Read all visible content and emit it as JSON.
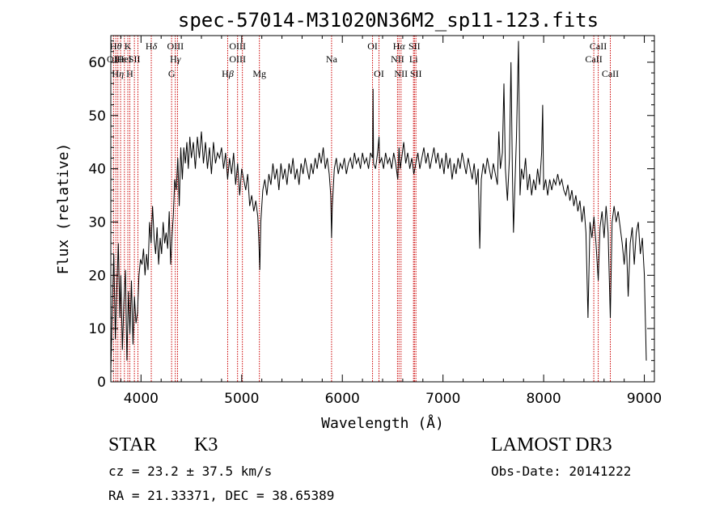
{
  "chart_data": {
    "type": "line",
    "title": "spec-57014-M31020N36M2_sp11-123.fits",
    "xlabel": "Wavelength (Å)",
    "ylabel": "Flux (relative)",
    "xlim": [
      3700,
      9100
    ],
    "ylim": [
      0,
      65
    ],
    "xticks": [
      4000,
      5000,
      6000,
      7000,
      8000,
      9000
    ],
    "yticks": [
      0,
      10,
      20,
      30,
      40,
      50,
      60
    ],
    "line_color": "#000000",
    "marker_color": "#cc0000",
    "spectrum": [
      [
        3700,
        2
      ],
      [
        3715,
        14
      ],
      [
        3730,
        24
      ],
      [
        3745,
        8
      ],
      [
        3760,
        18
      ],
      [
        3775,
        26
      ],
      [
        3790,
        12
      ],
      [
        3800,
        20
      ],
      [
        3815,
        6
      ],
      [
        3830,
        15
      ],
      [
        3845,
        21
      ],
      [
        3860,
        4
      ],
      [
        3875,
        17
      ],
      [
        3890,
        9
      ],
      [
        3905,
        19
      ],
      [
        3920,
        7
      ],
      [
        3935,
        16
      ],
      [
        3950,
        11
      ],
      [
        3965,
        13
      ],
      [
        3980,
        20
      ],
      [
        3995,
        23
      ],
      [
        4010,
        22
      ],
      [
        4025,
        25
      ],
      [
        4040,
        20
      ],
      [
        4055,
        24
      ],
      [
        4070,
        21
      ],
      [
        4085,
        30
      ],
      [
        4100,
        26
      ],
      [
        4115,
        33
      ],
      [
        4130,
        27
      ],
      [
        4145,
        24
      ],
      [
        4160,
        29
      ],
      [
        4175,
        22
      ],
      [
        4190,
        27
      ],
      [
        4205,
        24
      ],
      [
        4220,
        30
      ],
      [
        4235,
        26
      ],
      [
        4250,
        28
      ],
      [
        4265,
        25
      ],
      [
        4280,
        32
      ],
      [
        4295,
        22
      ],
      [
        4310,
        28
      ],
      [
        4320,
        31
      ],
      [
        4335,
        38
      ],
      [
        4350,
        36
      ],
      [
        4365,
        42
      ],
      [
        4380,
        33
      ],
      [
        4395,
        44
      ],
      [
        4410,
        38
      ],
      [
        4425,
        44
      ],
      [
        4440,
        41
      ],
      [
        4455,
        45
      ],
      [
        4470,
        40
      ],
      [
        4485,
        46
      ],
      [
        4500,
        42
      ],
      [
        4520,
        45
      ],
      [
        4540,
        40
      ],
      [
        4560,
        46
      ],
      [
        4580,
        42
      ],
      [
        4600,
        47
      ],
      [
        4620,
        41
      ],
      [
        4640,
        45
      ],
      [
        4660,
        40
      ],
      [
        4680,
        44
      ],
      [
        4700,
        39
      ],
      [
        4720,
        45
      ],
      [
        4740,
        41
      ],
      [
        4760,
        43
      ],
      [
        4780,
        42
      ],
      [
        4800,
        44
      ],
      [
        4820,
        40
      ],
      [
        4840,
        43
      ],
      [
        4860,
        38
      ],
      [
        4880,
        42
      ],
      [
        4900,
        39
      ],
      [
        4920,
        43
      ],
      [
        4940,
        37
      ],
      [
        4960,
        41
      ],
      [
        4980,
        35
      ],
      [
        5000,
        40
      ],
      [
        5020,
        38
      ],
      [
        5040,
        36
      ],
      [
        5060,
        39
      ],
      [
        5080,
        33
      ],
      [
        5100,
        35
      ],
      [
        5120,
        32
      ],
      [
        5140,
        34
      ],
      [
        5160,
        31
      ],
      [
        5170,
        27
      ],
      [
        5180,
        21
      ],
      [
        5190,
        30
      ],
      [
        5210,
        36
      ],
      [
        5230,
        38
      ],
      [
        5250,
        35
      ],
      [
        5270,
        39
      ],
      [
        5290,
        37
      ],
      [
        5310,
        41
      ],
      [
        5330,
        38
      ],
      [
        5350,
        40
      ],
      [
        5370,
        36
      ],
      [
        5390,
        41
      ],
      [
        5410,
        38
      ],
      [
        5430,
        40
      ],
      [
        5450,
        37
      ],
      [
        5470,
        41
      ],
      [
        5490,
        39
      ],
      [
        5510,
        42
      ],
      [
        5530,
        38
      ],
      [
        5550,
        40
      ],
      [
        5570,
        37
      ],
      [
        5590,
        41
      ],
      [
        5610,
        39
      ],
      [
        5630,
        42
      ],
      [
        5650,
        40
      ],
      [
        5670,
        38
      ],
      [
        5690,
        41
      ],
      [
        5710,
        39
      ],
      [
        5730,
        42
      ],
      [
        5750,
        40
      ],
      [
        5770,
        43
      ],
      [
        5790,
        41
      ],
      [
        5810,
        44
      ],
      [
        5830,
        40
      ],
      [
        5850,
        42
      ],
      [
        5870,
        39
      ],
      [
        5885,
        35
      ],
      [
        5893,
        27
      ],
      [
        5900,
        33
      ],
      [
        5920,
        40
      ],
      [
        5940,
        42
      ],
      [
        5960,
        39
      ],
      [
        5980,
        41
      ],
      [
        6000,
        40
      ],
      [
        6020,
        42
      ],
      [
        6040,
        39
      ],
      [
        6060,
        41
      ],
      [
        6080,
        42
      ],
      [
        6100,
        40
      ],
      [
        6120,
        43
      ],
      [
        6140,
        41
      ],
      [
        6160,
        42
      ],
      [
        6180,
        40
      ],
      [
        6200,
        43
      ],
      [
        6220,
        41
      ],
      [
        6240,
        42
      ],
      [
        6260,
        40
      ],
      [
        6280,
        43
      ],
      [
        6300,
        42
      ],
      [
        6305,
        55
      ],
      [
        6310,
        41
      ],
      [
        6330,
        40
      ],
      [
        6350,
        43
      ],
      [
        6365,
        46
      ],
      [
        6370,
        41
      ],
      [
        6390,
        42
      ],
      [
        6410,
        40
      ],
      [
        6430,
        43
      ],
      [
        6450,
        41
      ],
      [
        6470,
        42
      ],
      [
        6490,
        40
      ],
      [
        6510,
        43
      ],
      [
        6530,
        41
      ],
      [
        6550,
        38
      ],
      [
        6563,
        44
      ],
      [
        6575,
        40
      ],
      [
        6590,
        42
      ],
      [
        6610,
        45
      ],
      [
        6630,
        41
      ],
      [
        6650,
        43
      ],
      [
        6670,
        40
      ],
      [
        6690,
        42
      ],
      [
        6710,
        39
      ],
      [
        6730,
        41
      ],
      [
        6750,
        43
      ],
      [
        6770,
        40
      ],
      [
        6790,
        42
      ],
      [
        6810,
        44
      ],
      [
        6830,
        41
      ],
      [
        6850,
        43
      ],
      [
        6870,
        40
      ],
      [
        6890,
        42
      ],
      [
        6910,
        44
      ],
      [
        6930,
        41
      ],
      [
        6950,
        43
      ],
      [
        6970,
        40
      ],
      [
        6990,
        42
      ],
      [
        7010,
        39
      ],
      [
        7030,
        43
      ],
      [
        7050,
        40
      ],
      [
        7070,
        42
      ],
      [
        7090,
        38
      ],
      [
        7110,
        41
      ],
      [
        7130,
        39
      ],
      [
        7150,
        42
      ],
      [
        7170,
        40
      ],
      [
        7190,
        43
      ],
      [
        7210,
        41
      ],
      [
        7230,
        39
      ],
      [
        7250,
        42
      ],
      [
        7270,
        40
      ],
      [
        7290,
        38
      ],
      [
        7310,
        41
      ],
      [
        7330,
        37
      ],
      [
        7350,
        40
      ],
      [
        7365,
        25
      ],
      [
        7380,
        38
      ],
      [
        7400,
        41
      ],
      [
        7420,
        39
      ],
      [
        7440,
        42
      ],
      [
        7460,
        40
      ],
      [
        7480,
        38
      ],
      [
        7500,
        41
      ],
      [
        7520,
        39
      ],
      [
        7540,
        37
      ],
      [
        7555,
        47
      ],
      [
        7570,
        40
      ],
      [
        7590,
        43
      ],
      [
        7605,
        56
      ],
      [
        7620,
        40
      ],
      [
        7640,
        34
      ],
      [
        7660,
        42
      ],
      [
        7675,
        60
      ],
      [
        7690,
        39
      ],
      [
        7700,
        28
      ],
      [
        7715,
        37
      ],
      [
        7730,
        46
      ],
      [
        7750,
        64
      ],
      [
        7765,
        35
      ],
      [
        7780,
        40
      ],
      [
        7800,
        38
      ],
      [
        7820,
        42
      ],
      [
        7840,
        36
      ],
      [
        7860,
        39
      ],
      [
        7880,
        35
      ],
      [
        7900,
        38
      ],
      [
        7920,
        36
      ],
      [
        7940,
        40
      ],
      [
        7960,
        37
      ],
      [
        7980,
        43
      ],
      [
        7990,
        52
      ],
      [
        8000,
        36
      ],
      [
        8020,
        38
      ],
      [
        8040,
        35
      ],
      [
        8060,
        38
      ],
      [
        8080,
        36
      ],
      [
        8100,
        38
      ],
      [
        8120,
        37
      ],
      [
        8140,
        39
      ],
      [
        8160,
        37
      ],
      [
        8180,
        38
      ],
      [
        8200,
        36
      ],
      [
        8220,
        35
      ],
      [
        8240,
        37
      ],
      [
        8260,
        34
      ],
      [
        8280,
        36
      ],
      [
        8300,
        33
      ],
      [
        8320,
        35
      ],
      [
        8340,
        32
      ],
      [
        8360,
        34
      ],
      [
        8380,
        30
      ],
      [
        8400,
        33
      ],
      [
        8420,
        28
      ],
      [
        8440,
        12
      ],
      [
        8460,
        30
      ],
      [
        8480,
        27
      ],
      [
        8500,
        31
      ],
      [
        8520,
        26
      ],
      [
        8542,
        19
      ],
      [
        8560,
        29
      ],
      [
        8580,
        32
      ],
      [
        8600,
        27
      ],
      [
        8620,
        33
      ],
      [
        8640,
        28
      ],
      [
        8662,
        12
      ],
      [
        8680,
        30
      ],
      [
        8700,
        33
      ],
      [
        8720,
        30
      ],
      [
        8740,
        32
      ],
      [
        8760,
        29
      ],
      [
        8780,
        26
      ],
      [
        8800,
        22
      ],
      [
        8820,
        27
      ],
      [
        8840,
        16
      ],
      [
        8860,
        26
      ],
      [
        8880,
        29
      ],
      [
        8900,
        22
      ],
      [
        8920,
        28
      ],
      [
        8940,
        30
      ],
      [
        8960,
        24
      ],
      [
        8980,
        27
      ],
      [
        9000,
        20
      ],
      [
        9010,
        12
      ],
      [
        9020,
        4
      ]
    ],
    "line_markers": [
      {
        "x": 3727,
        "labels": [
          "OII"
        ],
        "rows": [
          1
        ]
      },
      {
        "x": 3750,
        "labels": [
          "H$\\theta$"
        ],
        "rows": [
          0
        ]
      },
      {
        "x": 3770,
        "labels": [
          "H$\\eta$"
        ],
        "rows": [
          2
        ]
      },
      {
        "x": 3797,
        "labels": [
          "H$\\epsilon$"
        ],
        "rows": [
          1
        ]
      },
      {
        "x": 3835,
        "labels": [
          "HeI"
        ],
        "rows": [
          1
        ]
      },
      {
        "x": 3869,
        "labels": [
          "K"
        ],
        "rows": [
          0
        ]
      },
      {
        "x": 3889,
        "labels": [
          "H"
        ],
        "rows": [
          2
        ]
      },
      {
        "x": 3934,
        "labels": [
          "SII"
        ],
        "rows": [
          1
        ]
      },
      {
        "x": 3969,
        "labels": [],
        "rows": []
      },
      {
        "x": 4102,
        "labels": [
          "H$\\delta$"
        ],
        "rows": [
          0
        ]
      },
      {
        "x": 4304,
        "labels": [
          "G"
        ],
        "rows": [
          2
        ]
      },
      {
        "x": 4341,
        "labels": [
          "OIII",
          "H$\\gamma$"
        ],
        "rows": [
          0,
          1
        ]
      },
      {
        "x": 4363,
        "labels": [],
        "rows": []
      },
      {
        "x": 4861,
        "labels": [
          "H$\\beta$"
        ],
        "rows": [
          2
        ]
      },
      {
        "x": 4959,
        "labels": [
          "OIII",
          "OIII"
        ],
        "rows": [
          0,
          1
        ]
      },
      {
        "x": 5007,
        "labels": [],
        "rows": []
      },
      {
        "x": 5176,
        "labels": [
          "Mg"
        ],
        "rows": [
          2
        ]
      },
      {
        "x": 5893,
        "labels": [
          "Na"
        ],
        "rows": [
          1
        ]
      },
      {
        "x": 6300,
        "labels": [
          "OI"
        ],
        "rows": [
          0
        ]
      },
      {
        "x": 6364,
        "labels": [
          "OI"
        ],
        "rows": [
          2
        ]
      },
      {
        "x": 6548,
        "labels": [
          "NII"
        ],
        "rows": [
          1
        ]
      },
      {
        "x": 6563,
        "labels": [
          "H$\\alpha$"
        ],
        "rows": [
          0
        ]
      },
      {
        "x": 6583,
        "labels": [
          "NII"
        ],
        "rows": [
          2
        ]
      },
      {
        "x": 6707,
        "labels": [
          "Li"
        ],
        "rows": [
          1
        ]
      },
      {
        "x": 6716,
        "labels": [
          "SII"
        ],
        "rows": [
          0
        ]
      },
      {
        "x": 6731,
        "labels": [
          "SII"
        ],
        "rows": [
          2
        ]
      },
      {
        "x": 8498,
        "labels": [
          "CaII"
        ],
        "rows": [
          1
        ]
      },
      {
        "x": 8542,
        "labels": [
          "CaII"
        ],
        "rows": [
          0
        ]
      },
      {
        "x": 8662,
        "labels": [
          "CaII"
        ],
        "rows": [
          2
        ]
      }
    ]
  },
  "info": {
    "object_class": "STAR",
    "subclass": "K3",
    "survey": "LAMOST DR3",
    "cz": "cz = 23.2 ± 37.5 km/s",
    "obs_date": "Obs-Date: 20141222",
    "radec": "RA =  21.33371, DEC =  38.65389"
  }
}
